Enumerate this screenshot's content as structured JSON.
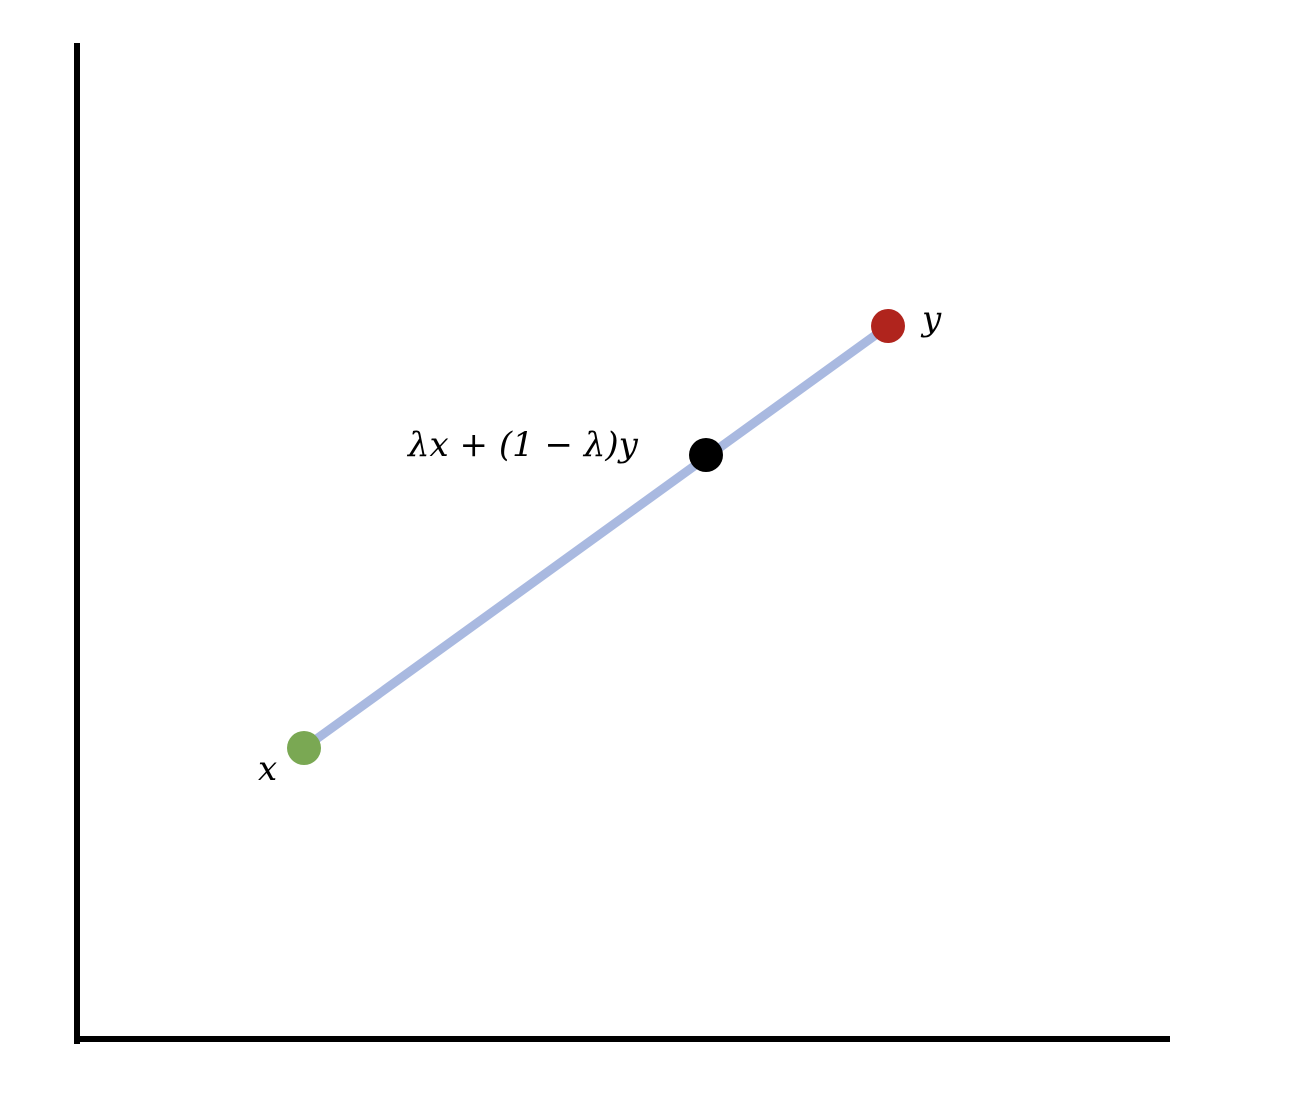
{
  "diagram": {
    "segment_color": "#a9b9e0",
    "axis_color": "#000000",
    "points": {
      "x": {
        "label": "x",
        "color": "#7aa853"
      },
      "y": {
        "label": "y",
        "color": "#b0241d"
      },
      "combo": {
        "label": "λx + (1 − λ)y",
        "color": "#000000"
      }
    }
  }
}
